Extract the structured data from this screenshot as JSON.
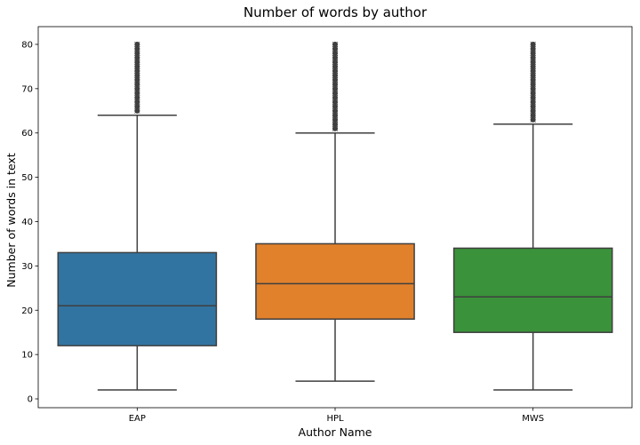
{
  "chart_data": {
    "type": "box",
    "title": "Number of words by author",
    "xlabel": "Author Name",
    "ylabel": "Number of words in text",
    "ylim": [
      -2,
      84
    ],
    "yticks": [
      0,
      10,
      20,
      30,
      40,
      50,
      60,
      70,
      80
    ],
    "categories": [
      "EAP",
      "HPL",
      "MWS"
    ],
    "colors": [
      "#3274a1",
      "#e1812c",
      "#3a923a"
    ],
    "boxes": [
      {
        "category": "EAP",
        "min": 2,
        "q1": 12,
        "median": 21,
        "q3": 33,
        "max": 64,
        "outliers_from": 65,
        "outliers_to": 80
      },
      {
        "category": "HPL",
        "min": 4,
        "q1": 18,
        "median": 26,
        "q3": 35,
        "max": 60,
        "outliers_from": 61,
        "outliers_to": 80
      },
      {
        "category": "MWS",
        "min": 2,
        "q1": 15,
        "median": 23,
        "q3": 34,
        "max": 62,
        "outliers_from": 63,
        "outliers_to": 80
      }
    ]
  }
}
